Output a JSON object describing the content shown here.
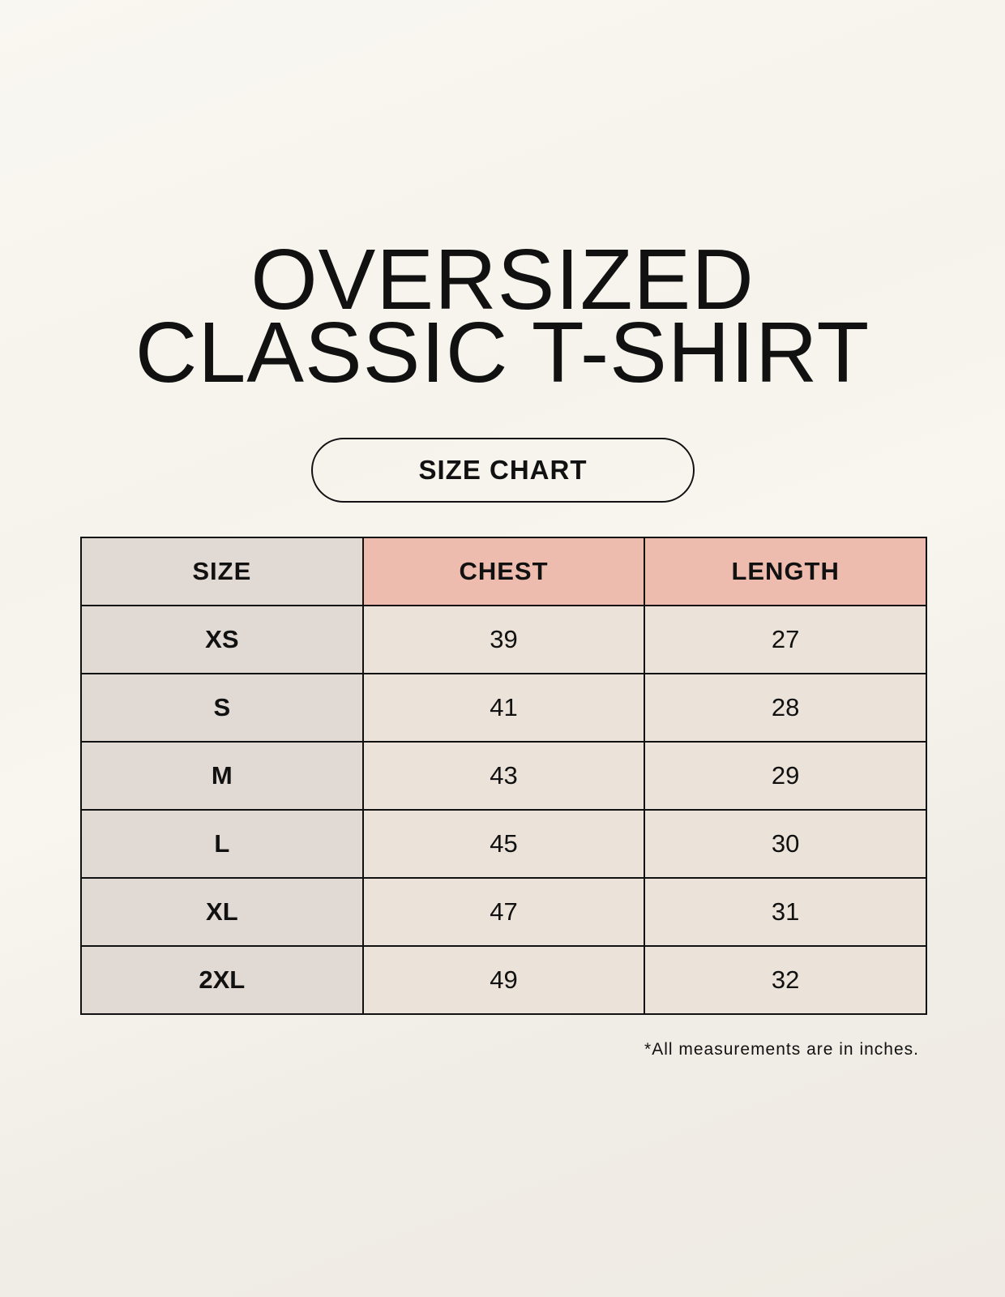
{
  "title": {
    "line1": "OVERSIZED",
    "line2": "CLASSIC T-SHIRT"
  },
  "badge": "SIZE CHART",
  "table": {
    "headers": [
      "SIZE",
      "CHEST",
      "LENGTH"
    ],
    "rows": [
      [
        "XS",
        "39",
        "27"
      ],
      [
        "S",
        "41",
        "28"
      ],
      [
        "M",
        "43",
        "29"
      ],
      [
        "L",
        "45",
        "30"
      ],
      [
        "XL",
        "47",
        "31"
      ],
      [
        "2XL",
        "49",
        "32"
      ]
    ]
  },
  "footnote": "*All measurements are in inches.",
  "colors": {
    "size_column": "#e1d9d3",
    "header_accent": "#edbcaf",
    "value_cells": "#ebe3d9"
  }
}
